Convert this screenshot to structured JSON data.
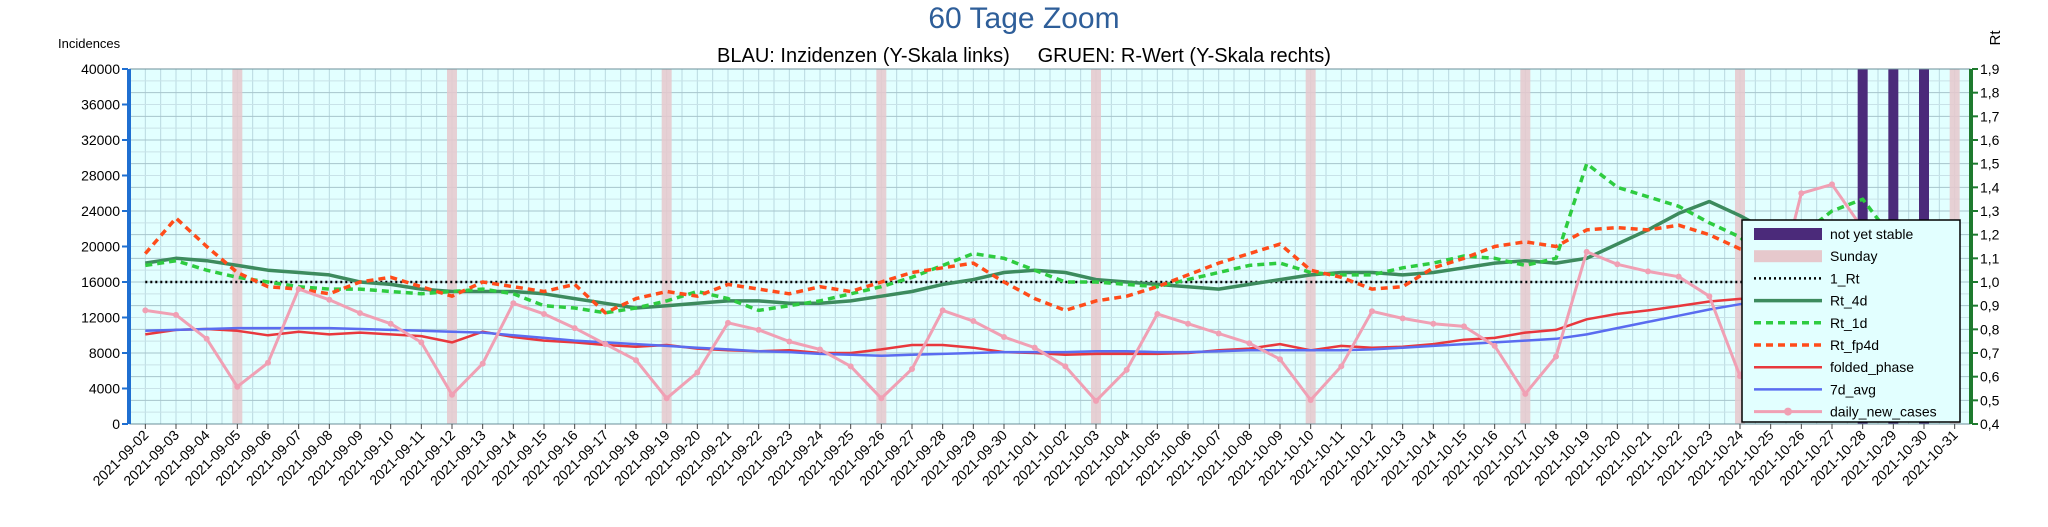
{
  "chart_data": {
    "type": "line",
    "title": "60 Tage Zoom",
    "subtitle": "BLAU: Inzidenzen (Y-Skala links)     GRUEN: R-Wert (Y-Skala rechts)",
    "ylabel_left": "Incidences",
    "ylabel_right": "Rt",
    "ylim_left": [
      0,
      40000
    ],
    "ylim_right": [
      0.4,
      1.9
    ],
    "yticks_left": [
      "0",
      "4000",
      "8000",
      "12000",
      "16000",
      "20000",
      "24000",
      "28000",
      "32000",
      "36000",
      "40000"
    ],
    "yticks_right": [
      "0,4",
      "0,5",
      "0,6",
      "0,7",
      "0,8",
      "0,9",
      "1,0",
      "1,1",
      "1,2",
      "1,3",
      "1,4",
      "1,5",
      "1,6",
      "1,7",
      "1,8",
      "1,9"
    ],
    "x": [
      "2021-09-02",
      "2021-09-03",
      "2021-09-04",
      "2021-09-05",
      "2021-09-06",
      "2021-09-07",
      "2021-09-08",
      "2021-09-09",
      "2021-09-10",
      "2021-09-11",
      "2021-09-12",
      "2021-09-13",
      "2021-09-14",
      "2021-09-15",
      "2021-09-16",
      "2021-09-17",
      "2021-09-18",
      "2021-09-19",
      "2021-09-20",
      "2021-09-21",
      "2021-09-22",
      "2021-09-23",
      "2021-09-24",
      "2021-09-25",
      "2021-09-26",
      "2021-09-27",
      "2021-09-28",
      "2021-09-29",
      "2021-09-30",
      "2021-10-01",
      "2021-10-02",
      "2021-10-03",
      "2021-10-04",
      "2021-10-05",
      "2021-10-06",
      "2021-10-07",
      "2021-10-08",
      "2021-10-09",
      "2021-10-10",
      "2021-10-11",
      "2021-10-12",
      "2021-10-13",
      "2021-10-14",
      "2021-10-15",
      "2021-10-16",
      "2021-10-17",
      "2021-10-18",
      "2021-10-19",
      "2021-10-20",
      "2021-10-21",
      "2021-10-22",
      "2021-10-23",
      "2021-10-24",
      "2021-10-25",
      "2021-10-26",
      "2021-10-27",
      "2021-10-28",
      "2021-10-29",
      "2021-10-30",
      "2021-10-31"
    ],
    "sundays": [
      "2021-09-05",
      "2021-09-12",
      "2021-09-19",
      "2021-09-26",
      "2021-10-03",
      "2021-10-10",
      "2021-10-17",
      "2021-10-24",
      "2021-10-31"
    ],
    "not_yet_stable": [
      "2021-10-28",
      "2021-10-29",
      "2021-10-30"
    ],
    "grid": true,
    "legend": "right",
    "series": [
      {
        "name": "not yet stable",
        "axis": "none",
        "style": "bar",
        "color": "#4b2a7a"
      },
      {
        "name": "Sunday",
        "axis": "none",
        "style": "band",
        "color": "#e6c8cc"
      },
      {
        "name": "1_Rt",
        "axis": "right",
        "style": "dotted",
        "color": "#000000",
        "values": [
          1.0,
          1.0,
          1.0,
          1.0,
          1.0,
          1.0,
          1.0,
          1.0,
          1.0,
          1.0,
          1.0,
          1.0,
          1.0,
          1.0,
          1.0,
          1.0,
          1.0,
          1.0,
          1.0,
          1.0,
          1.0,
          1.0,
          1.0,
          1.0,
          1.0,
          1.0,
          1.0,
          1.0,
          1.0,
          1.0,
          1.0,
          1.0,
          1.0,
          1.0,
          1.0,
          1.0,
          1.0,
          1.0,
          1.0,
          1.0,
          1.0,
          1.0,
          1.0,
          1.0,
          1.0,
          1.0,
          1.0,
          1.0,
          1.0,
          1.0,
          1.0,
          1.0,
          1.0,
          1.0,
          1.0,
          1.0,
          1.0,
          1.0,
          1.0,
          1.0
        ]
      },
      {
        "name": "Rt_4d",
        "axis": "right",
        "style": "solid-thick",
        "color": "#3d8b5e",
        "values": [
          1.08,
          1.1,
          1.09,
          1.07,
          1.05,
          1.04,
          1.03,
          1.0,
          0.99,
          0.97,
          0.96,
          0.96,
          0.96,
          0.95,
          0.93,
          0.91,
          0.89,
          0.9,
          0.91,
          0.92,
          0.92,
          0.91,
          0.91,
          0.92,
          0.94,
          0.96,
          0.99,
          1.01,
          1.04,
          1.05,
          1.04,
          1.01,
          1.0,
          0.99,
          0.98,
          0.97,
          0.99,
          1.01,
          1.03,
          1.04,
          1.04,
          1.03,
          1.04,
          1.06,
          1.08,
          1.09,
          1.08,
          1.1,
          1.16,
          1.22,
          1.29,
          1.34,
          1.28,
          1.21,
          1.18,
          1.2,
          1.24,
          1.25,
          1.2,
          1.1
        ]
      },
      {
        "name": "Rt_1d",
        "axis": "right",
        "style": "dashed",
        "color": "#2ecc40",
        "values": [
          1.07,
          1.09,
          1.05,
          1.02,
          1.0,
          0.98,
          0.97,
          0.97,
          0.96,
          0.95,
          0.96,
          0.97,
          0.95,
          0.9,
          0.89,
          0.87,
          0.89,
          0.92,
          0.96,
          0.93,
          0.88,
          0.9,
          0.92,
          0.95,
          0.98,
          1.02,
          1.07,
          1.12,
          1.1,
          1.05,
          1.0,
          1.0,
          0.99,
          0.98,
          1.01,
          1.04,
          1.07,
          1.08,
          1.04,
          1.03,
          1.03,
          1.06,
          1.08,
          1.11,
          1.1,
          1.07,
          1.1,
          1.5,
          1.4,
          1.36,
          1.32,
          1.25,
          1.19,
          1.06,
          1.2,
          1.3,
          1.35,
          1.18,
          1.08,
          0.96
        ]
      },
      {
        "name": "Rt_fp4d",
        "axis": "right",
        "style": "dashed",
        "color": "#ff4c1a",
        "values": [
          1.12,
          1.27,
          1.15,
          1.04,
          0.98,
          0.97,
          0.95,
          1.0,
          1.02,
          0.98,
          0.94,
          1.0,
          0.98,
          0.96,
          0.99,
          0.87,
          0.93,
          0.96,
          0.94,
          0.99,
          0.97,
          0.95,
          0.98,
          0.96,
          1.0,
          1.04,
          1.06,
          1.08,
          1.0,
          0.93,
          0.88,
          0.92,
          0.94,
          0.98,
          1.03,
          1.08,
          1.12,
          1.16,
          1.05,
          1.02,
          0.97,
          0.98,
          1.06,
          1.1,
          1.15,
          1.17,
          1.15,
          1.22,
          1.23,
          1.22,
          1.24,
          1.2,
          1.14,
          1.12,
          1.1,
          1.16,
          1.19,
          1.14,
          1.1,
          0.87
        ]
      },
      {
        "name": "folded_phase",
        "axis": "left",
        "style": "solid",
        "color": "#e8383d",
        "values": [
          10100,
          10600,
          10700,
          10500,
          10000,
          10400,
          10100,
          10300,
          10100,
          9900,
          9200,
          10400,
          9800,
          9400,
          9200,
          8900,
          8700,
          8900,
          8500,
          8300,
          8200,
          8300,
          8000,
          8000,
          8400,
          8900,
          8900,
          8600,
          8100,
          8000,
          7800,
          7900,
          7900,
          7900,
          8000,
          8300,
          8500,
          9000,
          8300,
          8800,
          8600,
          8700,
          9000,
          9500,
          9700,
          10300,
          10600,
          11800,
          12400,
          12800,
          13300,
          13800,
          14100,
          14200,
          14800,
          16800,
          17200,
          16800,
          16200,
          15300
        ]
      },
      {
        "name": "7d_avg",
        "axis": "left",
        "style": "solid",
        "color": "#5a6cf0",
        "values": [
          10500,
          10600,
          10700,
          10800,
          10800,
          10800,
          10800,
          10700,
          10600,
          10500,
          10400,
          10300,
          10000,
          9700,
          9400,
          9200,
          9000,
          8800,
          8600,
          8400,
          8200,
          8100,
          7900,
          7800,
          7700,
          7800,
          7900,
          8000,
          8100,
          8100,
          8100,
          8200,
          8200,
          8100,
          8100,
          8200,
          8300,
          8300,
          8300,
          8300,
          8400,
          8600,
          8800,
          9000,
          9200,
          9400,
          9600,
          10100,
          10800,
          11500,
          12200,
          12900,
          13500,
          14100,
          15200,
          16300,
          17300,
          17900,
          18300,
          18300
        ]
      },
      {
        "name": "daily_new_cases",
        "axis": "left",
        "style": "line-markers",
        "color": "#f0a0b4",
        "values": [
          12800,
          12300,
          9600,
          4200,
          6900,
          15200,
          14000,
          12500,
          11300,
          9200,
          3300,
          6800,
          13600,
          12400,
          10800,
          9000,
          7200,
          2900,
          5800,
          11400,
          10600,
          9300,
          8400,
          6500,
          2900,
          6200,
          12800,
          11600,
          9800,
          8600,
          6500,
          2600,
          6100,
          12400,
          11300,
          10200,
          9100,
          7300,
          2700,
          6500,
          12700,
          11900,
          11300,
          11000,
          8800,
          3400,
          7600,
          19400,
          18000,
          17200,
          16600,
          14400,
          5400,
          12200,
          26000,
          27000,
          22000,
          19800,
          15500,
          5200
        ]
      }
    ]
  }
}
